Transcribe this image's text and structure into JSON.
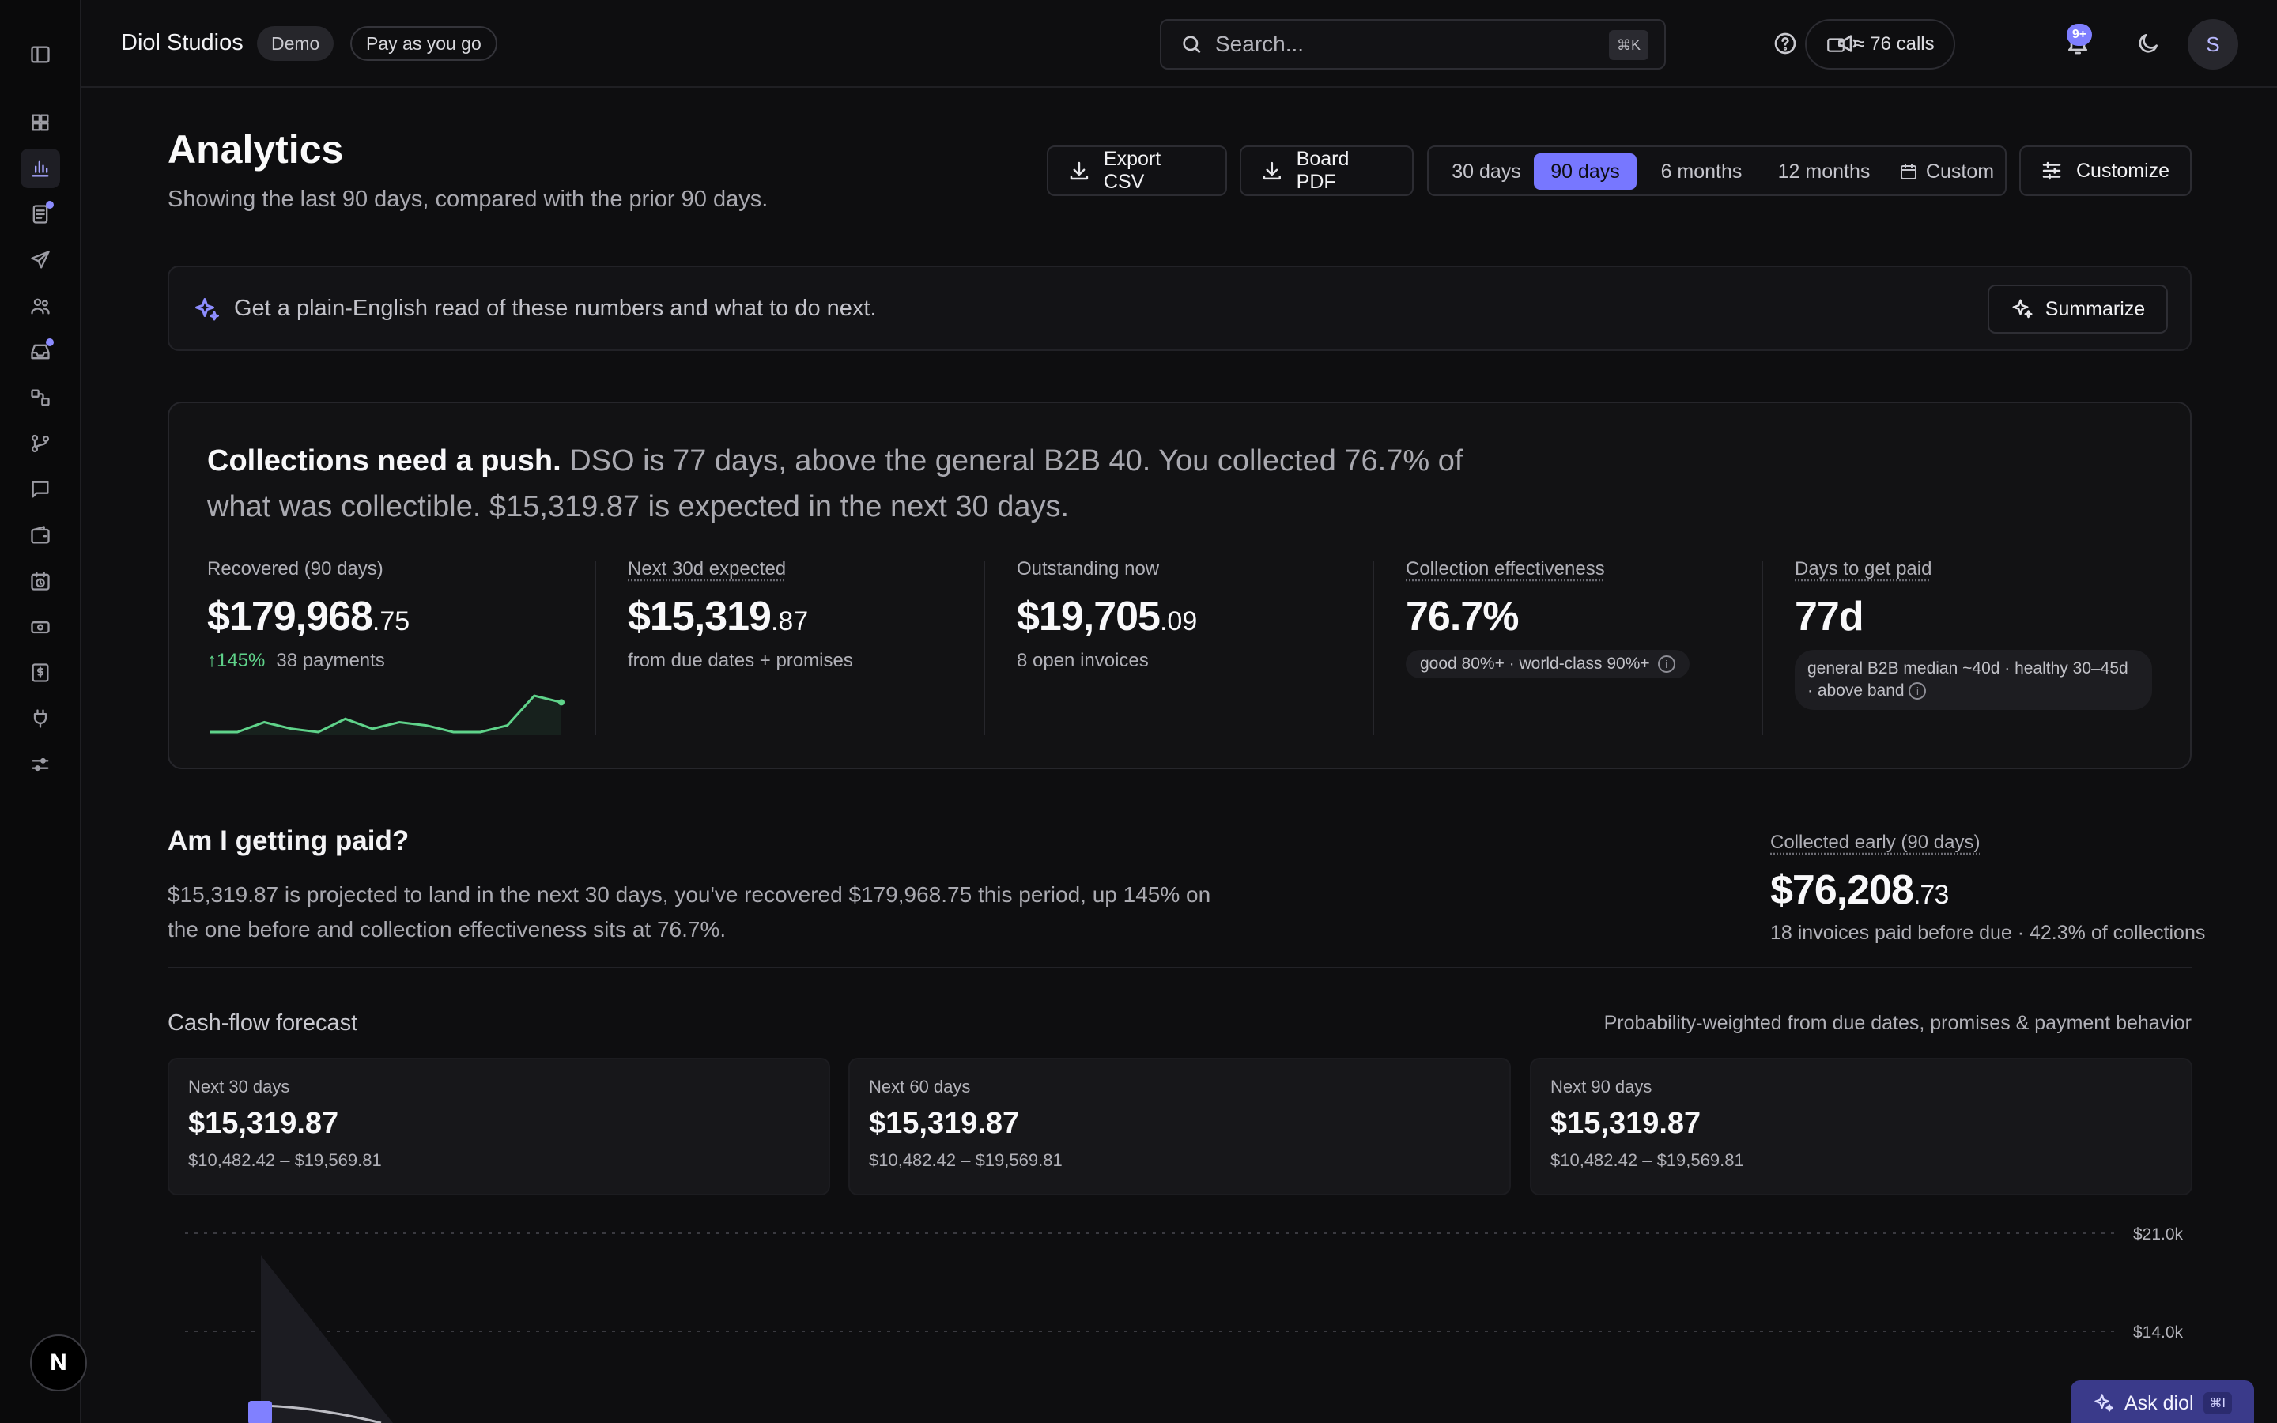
{
  "sidebar": {
    "items": [
      {
        "icon": "dashboard-icon",
        "active": false,
        "dot": false
      },
      {
        "icon": "analytics-icon",
        "active": true,
        "dot": false
      },
      {
        "icon": "invoices-icon",
        "active": false,
        "dot": true
      },
      {
        "icon": "send-icon",
        "active": false,
        "dot": false
      },
      {
        "icon": "customers-icon",
        "active": false,
        "dot": false
      },
      {
        "icon": "inbox-icon",
        "active": false,
        "dot": true
      },
      {
        "icon": "workflows-icon",
        "active": false,
        "dot": false
      },
      {
        "icon": "branch-icon",
        "active": false,
        "dot": false
      },
      {
        "icon": "messages-icon",
        "active": false,
        "dot": false
      },
      {
        "icon": "wallet-icon",
        "active": false,
        "dot": false
      },
      {
        "icon": "schedule-icon",
        "active": false,
        "dot": false
      },
      {
        "icon": "payments-icon",
        "active": false,
        "dot": false
      },
      {
        "icon": "billing-icon",
        "active": false,
        "dot": false
      },
      {
        "icon": "integrations-icon",
        "active": false,
        "dot": false
      },
      {
        "icon": "settings-icon",
        "active": false,
        "dot": false
      }
    ],
    "logo": "N"
  },
  "header": {
    "brand": "Diol Studios",
    "demo_badge": "Demo",
    "plan_badge": "Pay as you go",
    "search_placeholder": "Search...",
    "search_shortcut": "⌘K",
    "calls": "≈ 76 calls",
    "notif_badge": "9+",
    "avatar_initial": "S"
  },
  "page": {
    "title": "Analytics",
    "subtitle": "Showing the last 90 days, compared with the prior 90 days.",
    "export_csv": "Export CSV",
    "board_pdf": "Board PDF",
    "ranges": [
      "30 days",
      "90 days",
      "6 months",
      "12 months",
      "Custom"
    ],
    "active_range": "90 days",
    "customize": "Customize"
  },
  "summary": {
    "text": "Get a plain-English read of these numbers and what to do next.",
    "button": "Summarize"
  },
  "headline": {
    "bold": "Collections need a push.",
    "rest": " DSO is 77 days, above the general B2B 40. You collected 76.7% of what was collectible. $15,319.87 is expected in the next 30 days."
  },
  "kpis": {
    "recovered": {
      "label": "Recovered (90 days)",
      "value_main": "$179,968",
      "value_cents": ".75",
      "delta": "↑145%",
      "sub": "38 payments"
    },
    "next30": {
      "label": "Next 30d expected",
      "value_main": "$15,319",
      "value_cents": ".87",
      "sub": "from due dates + promises"
    },
    "outstanding": {
      "label": "Outstanding now",
      "value_main": "$19,705",
      "value_cents": ".09",
      "sub": "8 open invoices"
    },
    "effectiveness": {
      "label": "Collection effectiveness",
      "value": "76.7%",
      "chip": "good 80%+ · world-class 90%+"
    },
    "dso": {
      "label": "Days to get paid",
      "value": "77d",
      "chip_line1": "general B2B median ~40d · healthy 30–45d",
      "chip_line2": "· above band"
    }
  },
  "recovered_sparkline": [
    2,
    2,
    5,
    3,
    2,
    6,
    3,
    5,
    4,
    2,
    2,
    4,
    13,
    11
  ],
  "getting_paid": {
    "title": "Am I getting paid?",
    "text": "$15,319.87 is projected to land in the next 30 days, you've recovered $179,968.75 this period, up 145% on the one before and collection effectiveness sits at 76.7%.",
    "early_label": "Collected early (90 days)",
    "early_main": "$76,208",
    "early_cents": ".73",
    "early_sub": "18 invoices paid before due · 42.3% of collections"
  },
  "cashflow": {
    "title": "Cash-flow forecast",
    "note": "Probability-weighted from due dates, promises & payment behavior",
    "cards": [
      {
        "label": "Next 30 days",
        "value": "$15,319.87",
        "range": "$10,482.42 – $19,569.81"
      },
      {
        "label": "Next 60 days",
        "value": "$15,319.87",
        "range": "$10,482.42 – $19,569.81"
      },
      {
        "label": "Next 90 days",
        "value": "$15,319.87",
        "range": "$10,482.42 – $19,569.81"
      }
    ]
  },
  "chart_data": {
    "type": "area",
    "y_ticks": [
      "$21.0k",
      "$14.0k"
    ],
    "ylim": [
      0,
      21000
    ]
  },
  "ask": {
    "label": "Ask diol",
    "shortcut": "⌘I"
  },
  "colors": {
    "accent": "#7777ff",
    "positive": "#5fd38a",
    "background": "#0e0e10"
  }
}
